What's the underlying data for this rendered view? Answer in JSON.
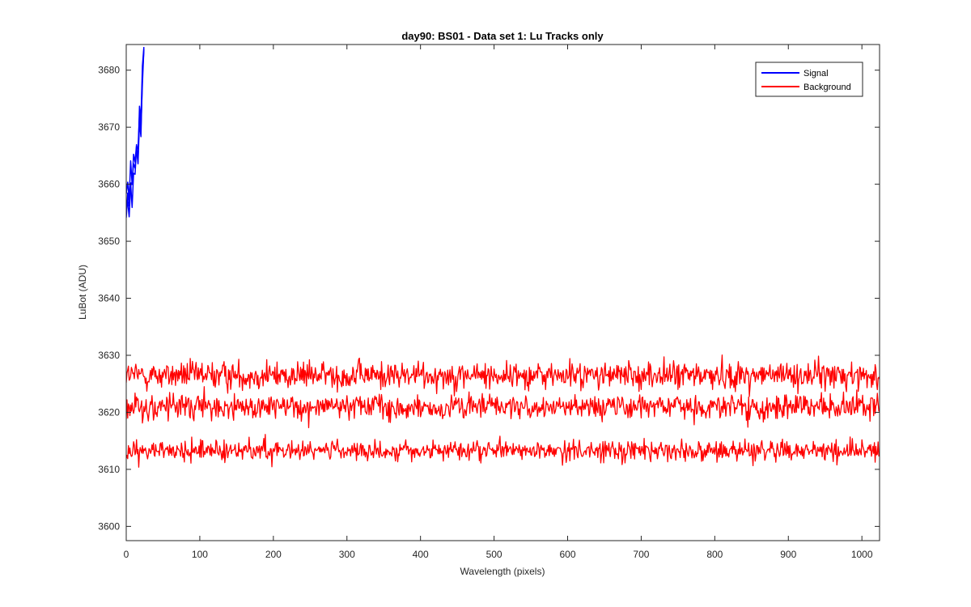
{
  "chart_data": {
    "type": "line",
    "title": "day90: BS01 - Data set 1: Lu Tracks only",
    "xlabel": "Wavelength (pixels)",
    "ylabel": "LuBot (ADU)",
    "xlim": [
      0,
      1024
    ],
    "ylim": [
      3597.5,
      3684.5
    ],
    "xticks": [
      0,
      100,
      200,
      300,
      400,
      500,
      600,
      700,
      800,
      900,
      1000
    ],
    "yticks": [
      3600,
      3610,
      3620,
      3630,
      3640,
      3650,
      3660,
      3670,
      3680
    ],
    "grid": false,
    "legend_position": "top-right",
    "series": [
      {
        "name": "Signal",
        "color": "#0000ff",
        "note_traces": 3,
        "x": [
          0,
          2,
          4,
          6,
          8,
          10,
          12,
          14,
          16,
          18,
          20,
          22,
          24
        ],
        "y": [
          3655,
          3658,
          3656,
          3661,
          3659,
          3663,
          3661,
          3666,
          3664,
          3670,
          3672,
          3679,
          3685
        ]
      },
      {
        "name": "Background",
        "color": "#ff0000",
        "traces": [
          {
            "mean": 3626.5,
            "amplitude": 2.2,
            "min": 3618,
            "max": 3634
          },
          {
            "mean": 3621.0,
            "amplitude": 2.0,
            "min": 3616,
            "max": 3627
          },
          {
            "mean": 3613.3,
            "amplitude": 1.6,
            "min": 3608,
            "max": 3617
          }
        ]
      }
    ]
  }
}
